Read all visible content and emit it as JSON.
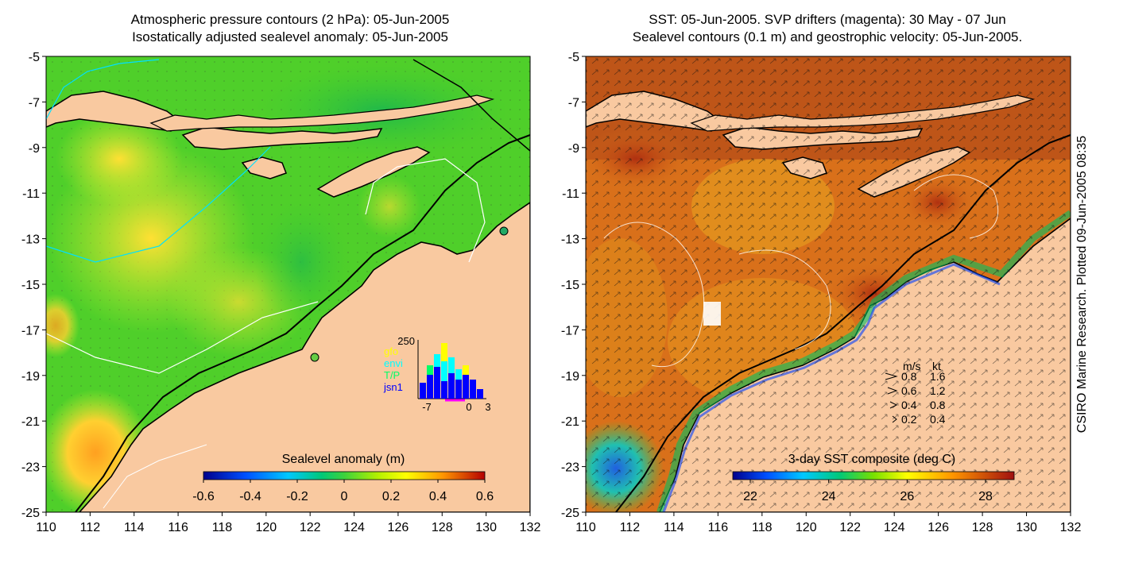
{
  "left_panel": {
    "title_line1": "Atmospheric pressure contours (2 hPa): 05-Jun-2005",
    "title_line2": "Isostatically adjusted sealevel anomaly: 05-Jun-2005",
    "x_ticks": [
      "110",
      "112",
      "114",
      "116",
      "118",
      "120",
      "122",
      "124",
      "126",
      "128",
      "130",
      "132"
    ],
    "y_ticks": [
      "-5",
      "-7",
      "-9",
      "-11",
      "-13",
      "-15",
      "-17",
      "-19",
      "-21",
      "-23",
      "-25"
    ],
    "colorbar": {
      "label": "Sealevel anomaly (m)",
      "ticks": [
        "-0.6",
        "-0.4",
        "-0.2",
        "0",
        "0.2",
        "0.4",
        "0.6"
      ]
    },
    "histogram": {
      "y_label": "250",
      "legend": [
        "gfo",
        "envi",
        "T/P",
        "jsn1"
      ],
      "legend_colors": [
        "#ffff00",
        "#00ffff",
        "#00ff66",
        "#0000ff"
      ],
      "x_labels": [
        "-7",
        "0",
        "3"
      ]
    }
  },
  "right_panel": {
    "title_line1": "SST: 05-Jun-2005. SVP drifters (magenta): 30 May - 07 Jun",
    "title_line2": "Sealevel contours (0.1 m) and geostrophic velocity: 05-Jun-2005.",
    "x_ticks": [
      "110",
      "112",
      "114",
      "116",
      "118",
      "120",
      "122",
      "124",
      "126",
      "128",
      "130",
      "132"
    ],
    "y_ticks": [
      "-5",
      "-7",
      "-9",
      "-11",
      "-13",
      "-15",
      "-17",
      "-19",
      "-21",
      "-23",
      "-25"
    ],
    "colorbar": {
      "label": "3-day SST composite (deg C)",
      "ticks": [
        "22",
        "24",
        "26",
        "28"
      ]
    },
    "velocity_legend": {
      "header_ms": "m/s",
      "header_kt": "kt",
      "rows": [
        {
          "ms": "0.8",
          "kt": "1.6"
        },
        {
          "ms": "0.6",
          "kt": "1.2"
        },
        {
          "ms": "0.4",
          "kt": "0.8"
        },
        {
          "ms": "0.2",
          "kt": "0.4"
        }
      ]
    }
  },
  "side_note": "CSIRO Marine Research. Plotted 09-Jun-2005 08:35",
  "colors": {
    "land": "#f9c9a0",
    "sla_ocean": "#4fcf2a",
    "sst_ocean": "#d9701a"
  }
}
